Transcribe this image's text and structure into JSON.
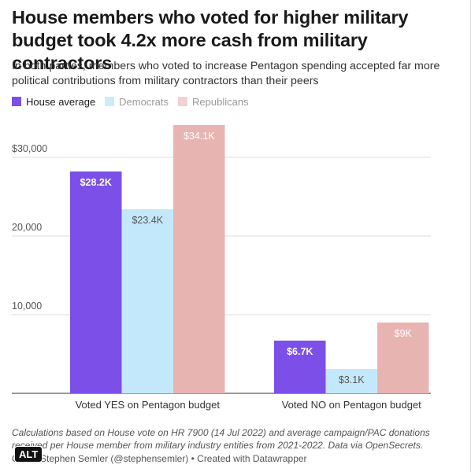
{
  "title": "House members who voted for higher military budget took 4.2x more cash from military contractors",
  "subtitle": "In both parties, members who voted to increase Pentagon spending accepted far more political contributions from military contractors than their peers",
  "legend": [
    {
      "label": "House average",
      "color": "#7b4fe8",
      "faded": false
    },
    {
      "label": "Democrats",
      "color": "#a6dbf7",
      "faded": true
    },
    {
      "label": "Republicans",
      "color": "#e4adab",
      "faded": true
    }
  ],
  "footnote": "Calculations based on House vote on HR 7900 (14 Jul 2022) and average campaign/PAC donations received per House member from military industry entities from 2021-2022. Data via OpenSecrets.",
  "credit": "Chart: Stephen Semler (@stephensemler) • Created with Datawrapper",
  "alt_badge": "ALT",
  "chart_data": {
    "type": "bar",
    "categories": [
      "Voted YES on Pentagon budget",
      "Voted NO on Pentagon budget"
    ],
    "series": [
      {
        "name": "House average",
        "values": [
          28200,
          6700
        ],
        "labels": [
          "$28.2K",
          "$6.7K"
        ],
        "color": "#7b4fe8",
        "label_color": "#ffffff",
        "faded": false
      },
      {
        "name": "Democrats",
        "values": [
          23400,
          3100
        ],
        "labels": [
          "$23.4K",
          "$3.1K"
        ],
        "color": "#c4e8fb",
        "label_color": "#555555",
        "faded": true
      },
      {
        "name": "Republicans",
        "values": [
          34100,
          9000
        ],
        "labels": [
          "$34.1K",
          "$9K"
        ],
        "color": "#e8b4b2",
        "label_color": "#ffffff",
        "faded": true
      }
    ],
    "ylim": [
      0,
      35000
    ],
    "yticks": [
      10000,
      20000,
      30000
    ],
    "ytick_labels": [
      "10,000",
      "20,000",
      "$30,000"
    ],
    "grid": true,
    "xlabel": "",
    "ylabel": ""
  }
}
